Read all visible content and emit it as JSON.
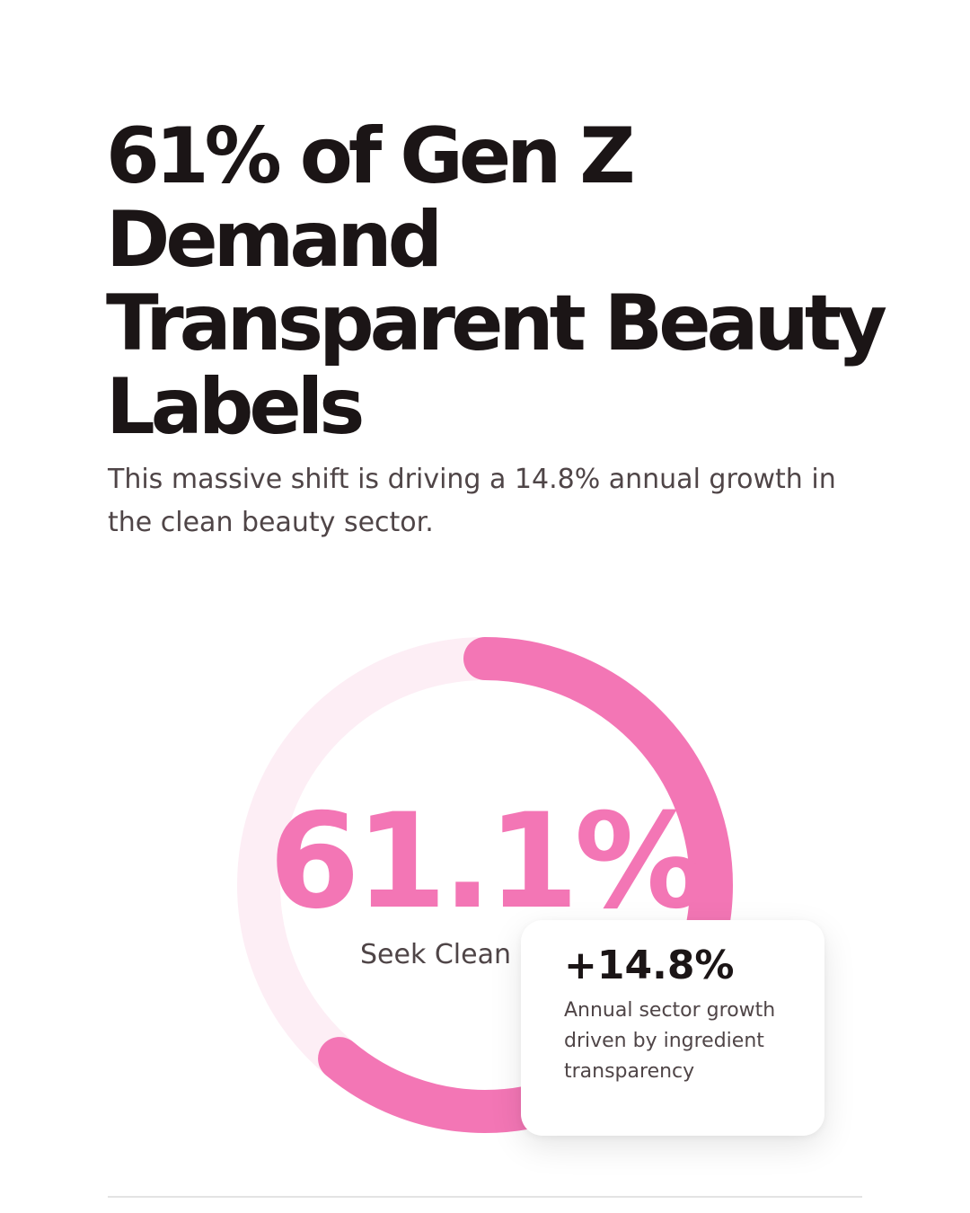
{
  "headline": "61% of Gen Z Demand Transparent Beauty Labels",
  "subheadline": "This massive shift is driving a 14.8% annual growth in the clean beauty sector.",
  "colors": {
    "accent": "#f376b5",
    "track": "#fdeef5",
    "text_dark": "#1b1516",
    "text_muted": "#4f4547"
  },
  "chart_data": {
    "type": "pie",
    "variant": "donut",
    "percent": 61.1,
    "value_label": "61.1%",
    "label": "Seek Clean"
  },
  "stat_card": {
    "value": "+14.8%",
    "description": "Annual sector growth driven by ingredient transparency"
  }
}
